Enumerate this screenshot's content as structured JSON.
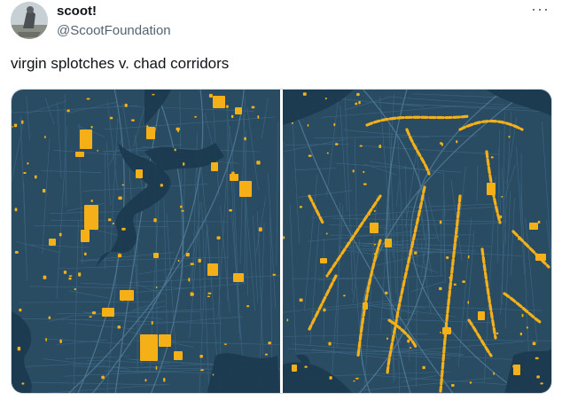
{
  "user": {
    "display_name": "scoot!",
    "handle": "@ScootFoundation",
    "avatar_icon": "avatar-photo-icon"
  },
  "menu": {
    "icon": "more-options-icon",
    "glyph": "···"
  },
  "tweet": {
    "text": "virgin splotches v. chad corridors"
  },
  "colors": {
    "map_background": "#2a4c63",
    "map_streets": "#3f6985",
    "map_water": "#1c3a4f",
    "highlight": "#f5b017",
    "handle_text": "#536471"
  }
}
